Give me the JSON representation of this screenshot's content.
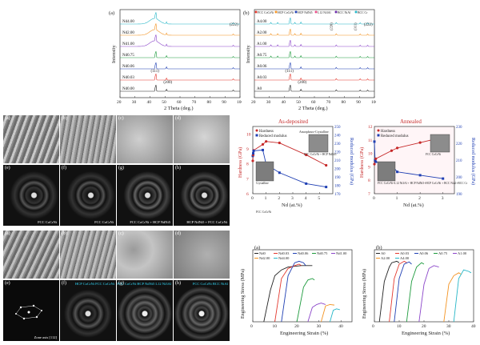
{
  "xrd_a": {
    "label": "(a)",
    "xlabel": "2 Theta (deg.)",
    "ylabel": "Intensity",
    "samples": [
      "Nd0.00",
      "Nd0.03",
      "Nd0.06",
      "Nd0.75",
      "Nd1.00",
      "Nd2.00",
      "Nd4.00"
    ],
    "peaks": [
      "(111)",
      "(200)",
      "(222)"
    ],
    "xticks": [
      "20",
      "30",
      "40",
      "50",
      "60",
      "70",
      "80",
      "90",
      "100"
    ]
  },
  "xrd_b": {
    "label": "(b)",
    "xlabel": "2 Theta (deg.)",
    "ylabel": "Intensity",
    "legend": [
      "FCC CoCrNi",
      "HCP CoCrNi",
      "HCP NdNi5",
      "L12 Ni3Al",
      "BCC NiAl",
      "BCC Cr"
    ],
    "samples": [
      "A0",
      "A0.03",
      "A0.06",
      "A0.75",
      "A1.00",
      "A2.00",
      "A4.00"
    ],
    "peaks": [
      "(111)",
      "(200)",
      "(222)",
      "(220)",
      "(311)"
    ],
    "xticks": [
      "20",
      "30",
      "40",
      "50",
      "60",
      "70",
      "80",
      "90",
      "100"
    ]
  },
  "tem_top": {
    "labels": [
      "(a)",
      "(b)",
      "(c)",
      "(d)",
      "(e)",
      "(f)",
      "(g)",
      "(h)"
    ],
    "captions": [
      "FCC CoCrNi",
      "FCC CoCrNi",
      "FCC CoCrNi + HCP NdNi5",
      "HCP NdNi5 + FCC CoCrNi"
    ],
    "scale": [
      "1 um",
      "1 um",
      "1 um",
      "1 um"
    ]
  },
  "hardness_deposited": {
    "title": "As-deposited",
    "xlabel": "Nd (at.%)",
    "ylabel_left": "Hardness (GPa)",
    "ylabel_right": "Reduced modulus (GPa)",
    "legend": [
      "Hardness",
      "Reduced modulus"
    ],
    "annotation": "Amorphous+Crystalline",
    "inset_labels": [
      "FCC CoCrNi + HCP NdNi5",
      "Crystalline",
      "FCC CoCrNi"
    ],
    "x": [
      0,
      0.03,
      0.06,
      0.75,
      1.0,
      2.0,
      4.0,
      5.5
    ],
    "hardness": [
      8.2,
      8.6,
      8.9,
      9.3,
      9.5,
      9.4,
      8.6,
      7.9
    ],
    "modulus": [
      215,
      218,
      221,
      222,
      205,
      195,
      182,
      178
    ],
    "yleft_ticks": [
      "6",
      "7",
      "8",
      "9",
      "10"
    ],
    "yright_ticks": [
      "170",
      "180",
      "190",
      "200",
      "210",
      "220",
      "230",
      "240",
      "250"
    ],
    "xticks": [
      "0",
      "1",
      "2",
      "3",
      "4",
      "5"
    ]
  },
  "hardness_annealed": {
    "title": "Annealed",
    "xlabel": "Nd (at.%)",
    "ylabel_left": "Hardness (GPa)",
    "ylabel_right": "Reduced modulus (GPa)",
    "legend": [
      "Hardness",
      "Reduced modulus"
    ],
    "inset_labels": [
      "FCC CoCrNi",
      "FCC CoCrNi+L12 Ni3Al + HCP NdNi5+HCP CoCrNi + BCC NiAl+BCC Cr"
    ],
    "x": [
      0,
      0.03,
      0.06,
      0.75,
      1.0,
      2.0,
      3.0
    ],
    "hardness": [
      9.2,
      9.4,
      9.6,
      10.2,
      10.4,
      10.8,
      11.2
    ],
    "modulus": [
      221,
      210,
      209,
      207,
      203,
      201,
      199
    ],
    "yleft_ticks": [
      "7",
      "8",
      "9",
      "10",
      "11",
      "12"
    ],
    "yright_ticks": [
      "190",
      "200",
      "210",
      "220",
      "230"
    ],
    "xticks": [
      "0",
      "1",
      "2",
      "3"
    ]
  },
  "tem_bottom": {
    "labels": [
      "(a)",
      "(b)",
      "(c)",
      "(d)",
      "(e)",
      "(f)",
      "(g)",
      "(h)"
    ],
    "captions": [
      "Zone axis [112]",
      "HCP CoCrNi FCC CoCrNi",
      "FCC CoCrNi HCP NdNi5 L12 Ni3Al",
      "FCC CoCrNi BCC NiAl"
    ],
    "scale": [
      "1 um",
      "1 um",
      "1 um",
      "1 um"
    ]
  },
  "stress_a": {
    "label": "(a)",
    "xlabel": "Engineering Strain (%)",
    "ylabel": "Engineering Stress (MPa)",
    "legend": [
      "Nd0",
      "Nd0.03",
      "Nd0.06",
      "Nd0.75",
      "Nd1.00",
      "Nd2.00",
      "Nd4.00"
    ],
    "xticks": [
      "0",
      "10",
      "20",
      "30",
      "40"
    ],
    "series": [
      {
        "name": "Nd0",
        "color": "#222222",
        "x": [
          5,
          8,
          10,
          13,
          16,
          22,
          27
        ],
        "y": [
          0,
          1100,
          1600,
          1800,
          1900,
          1950,
          1950
        ]
      },
      {
        "name": "Nd0.03",
        "color": "#e4392f",
        "x": [
          10,
          13,
          16,
          19,
          21,
          22
        ],
        "y": [
          0,
          1500,
          1850,
          1950,
          2000,
          1950
        ]
      },
      {
        "name": "Nd0.06",
        "color": "#1f3fb3",
        "x": [
          13,
          16,
          19,
          21,
          23,
          24
        ],
        "y": [
          0,
          1600,
          2050,
          2100,
          2050,
          1950
        ]
      },
      {
        "name": "Nd0.75",
        "color": "#1c9a3c",
        "x": [
          20,
          23,
          25,
          27,
          28
        ],
        "y": [
          0,
          1200,
          1450,
          1500,
          1450
        ]
      },
      {
        "name": "Nd1.00",
        "color": "#8a44c9",
        "x": [
          25,
          27,
          29,
          31,
          33
        ],
        "y": [
          0,
          500,
          600,
          650,
          600
        ]
      },
      {
        "name": "Nd2.00",
        "color": "#f39321",
        "x": [
          31,
          33,
          35,
          37
        ],
        "y": [
          0,
          550,
          600,
          580
        ]
      },
      {
        "name": "Nd4.00",
        "color": "#26b6c7",
        "x": [
          35,
          36.5,
          38,
          39.5
        ],
        "y": [
          0,
          400,
          450,
          420
        ]
      }
    ],
    "ylim": [
      0,
      2500
    ],
    "xlim": [
      0,
      45
    ]
  },
  "stress_b": {
    "label": "(b)",
    "xlabel": "Engineering Strain (%)",
    "ylabel": "Engineering Stress (MPa)",
    "legend": [
      "A0",
      "A0.03",
      "A0.06",
      "A0.75",
      "A1.00",
      "A2.00",
      "A4.00"
    ],
    "xticks": [
      "0",
      "10",
      "20",
      "30",
      "40"
    ],
    "series": [
      {
        "name": "A0",
        "color": "#222222",
        "x": [
          2,
          4,
          6,
          7,
          9,
          10
        ],
        "y": [
          0,
          1400,
          1900,
          2050,
          2100,
          2050
        ]
      },
      {
        "name": "A0.03",
        "color": "#e4392f",
        "x": [
          6,
          8,
          10,
          12,
          13
        ],
        "y": [
          0,
          1500,
          2000,
          2100,
          2050
        ]
      },
      {
        "name": "A0.06",
        "color": "#1f3fb3",
        "x": [
          8,
          10,
          12,
          14,
          15
        ],
        "y": [
          0,
          1500,
          2000,
          2080,
          2000
        ]
      },
      {
        "name": "A0.75",
        "color": "#1c9a3c",
        "x": [
          13,
          15,
          17,
          19,
          20
        ],
        "y": [
          0,
          1400,
          1900,
          2050,
          2000
        ]
      },
      {
        "name": "A1.00",
        "color": "#8a44c9",
        "x": [
          18,
          20,
          22,
          24,
          26
        ],
        "y": [
          0,
          1300,
          1850,
          1950,
          1900
        ]
      },
      {
        "name": "A2.00",
        "color": "#f39321",
        "x": [
          28,
          30,
          32,
          34,
          35
        ],
        "y": [
          0,
          1300,
          1600,
          1700,
          1650
        ]
      },
      {
        "name": "A4.00",
        "color": "#26b6c7",
        "x": [
          32,
          34,
          36,
          38,
          39
        ],
        "y": [
          0,
          1500,
          1800,
          1750,
          1700
        ]
      }
    ],
    "ylim": [
      0,
      2500
    ],
    "xlim": [
      0,
      40
    ]
  }
}
